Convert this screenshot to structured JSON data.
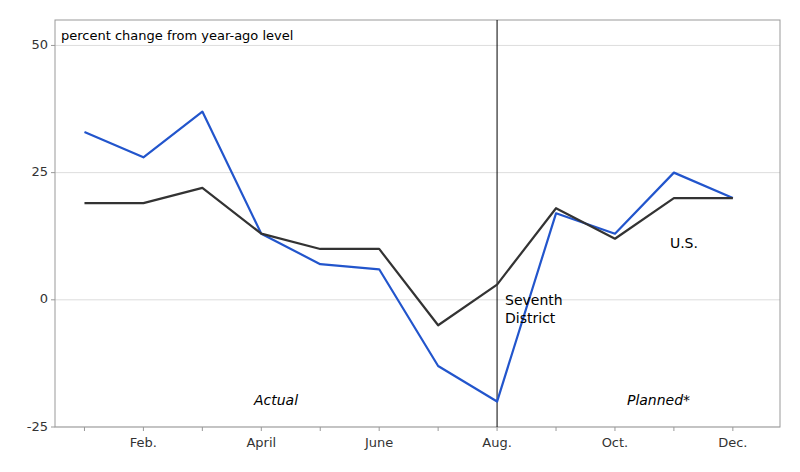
{
  "chart_data": {
    "type": "line",
    "categories": [
      null,
      "Feb.",
      null,
      "April",
      null,
      "June",
      null,
      "Aug.",
      null,
      "Oct.",
      null,
      "Dec."
    ],
    "series": [
      {
        "name": "Seventh District",
        "color": "#2255cc",
        "values": [
          33,
          28,
          37,
          13,
          7,
          6,
          -13,
          -20,
          17,
          13,
          25,
          20
        ]
      },
      {
        "name": "U.S.",
        "color": "#333333",
        "values": [
          19,
          19,
          22,
          13,
          10,
          10,
          -5,
          3,
          18,
          12,
          20,
          20
        ]
      }
    ],
    "divider": "Aug.",
    "annotations": [
      "percent change from year-ago level",
      "Actual",
      "Planned*"
    ],
    "ylim": [
      -25,
      55
    ],
    "yticks": [
      -25,
      0,
      25,
      50
    ],
    "grid": true
  }
}
